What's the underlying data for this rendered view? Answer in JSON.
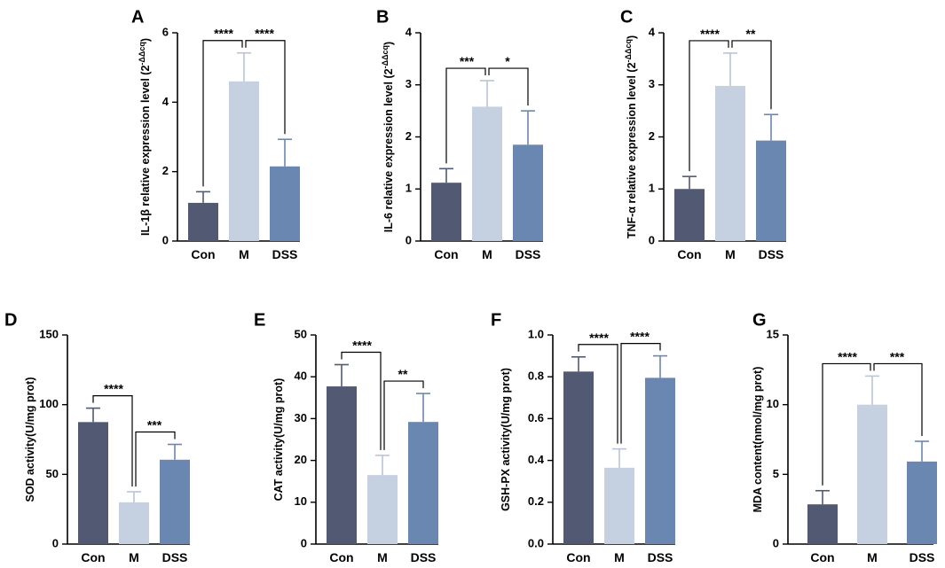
{
  "colors": {
    "Con": "#525a73",
    "M": "#c5d0e1",
    "DSS": "#6a87b2"
  },
  "chart_data": [
    {
      "type": "bar",
      "panel": "A",
      "ylabel": "IL-1β relative expression level (2",
      "ylabel_sup": "-ΔΔcq",
      "ylabel_end": ")",
      "categories": [
        "Con",
        "M",
        "DSS"
      ],
      "values": [
        1.1,
        4.6,
        2.15
      ],
      "errors": [
        0.32,
        0.82,
        0.78
      ],
      "ylim": [
        0,
        6
      ],
      "yticks": [
        "0",
        "2",
        "4",
        "6"
      ],
      "comparisons": [
        {
          "from": 0,
          "to": 1,
          "label": "****"
        },
        {
          "from": 1,
          "to": 2,
          "label": "****"
        }
      ]
    },
    {
      "type": "bar",
      "panel": "B",
      "ylabel": "IL-6 relative expression level (2",
      "ylabel_sup": "-ΔΔcq",
      "ylabel_end": ")",
      "categories": [
        "Con",
        "M",
        "DSS"
      ],
      "values": [
        1.12,
        2.58,
        1.85
      ],
      "errors": [
        0.27,
        0.5,
        0.65
      ],
      "ylim": [
        0,
        4
      ],
      "yticks": [
        "0",
        "1",
        "2",
        "3",
        "4"
      ],
      "comparisons": [
        {
          "from": 0,
          "to": 1,
          "label": "***"
        },
        {
          "from": 1,
          "to": 2,
          "label": "*"
        }
      ]
    },
    {
      "type": "bar",
      "panel": "C",
      "ylabel": "TNF-α relative expression level (2",
      "ylabel_sup": "-ΔΔcq",
      "ylabel_end": ")",
      "categories": [
        "Con",
        "M",
        "DSS"
      ],
      "values": [
        1.0,
        2.98,
        1.93
      ],
      "errors": [
        0.24,
        0.63,
        0.5
      ],
      "ylim": [
        0,
        4
      ],
      "yticks": [
        "0",
        "1",
        "2",
        "3",
        "4"
      ],
      "comparisons": [
        {
          "from": 0,
          "to": 1,
          "label": "****"
        },
        {
          "from": 1,
          "to": 2,
          "label": "**"
        }
      ]
    },
    {
      "type": "bar",
      "panel": "D",
      "ylabel": "SOD activity(U/mg prot)",
      "categories": [
        "Con",
        "M",
        "DSS"
      ],
      "values": [
        87.5,
        30,
        60.5
      ],
      "errors": [
        10,
        7.5,
        11
      ],
      "ylim": [
        0,
        150
      ],
      "yticks": [
        "0",
        "50",
        "100",
        "150"
      ],
      "comparisons": [
        {
          "from": 0,
          "to": 1,
          "label": "****"
        },
        {
          "from": 1,
          "to": 2,
          "label": "***"
        }
      ]
    },
    {
      "type": "bar",
      "panel": "E",
      "ylabel": "CAT activity(U/mg prot)",
      "categories": [
        "Con",
        "M",
        "DSS"
      ],
      "values": [
        37.7,
        16.5,
        29.2
      ],
      "errors": [
        5.2,
        4.7,
        6.8
      ],
      "ylim": [
        0,
        50
      ],
      "yticks": [
        "0",
        "10",
        "20",
        "30",
        "40",
        "50"
      ],
      "comparisons": [
        {
          "from": 0,
          "to": 1,
          "label": "****"
        },
        {
          "from": 1,
          "to": 2,
          "label": "**"
        }
      ]
    },
    {
      "type": "bar",
      "panel": "F",
      "ylabel": "GSH-PX activity(U/mg prot)",
      "categories": [
        "Con",
        "M",
        "DSS"
      ],
      "values": [
        0.825,
        0.365,
        0.795
      ],
      "errors": [
        0.07,
        0.09,
        0.105
      ],
      "ylim": [
        0,
        1.0
      ],
      "yticks": [
        "0.0",
        "0.2",
        "0.4",
        "0.6",
        "0.8",
        "1.0"
      ],
      "comparisons": [
        {
          "from": 0,
          "to": 1,
          "label": "****"
        },
        {
          "from": 1,
          "to": 2,
          "label": "****"
        }
      ]
    },
    {
      "type": "bar",
      "panel": "G",
      "ylabel": "MDA content(nmol/mg prot)",
      "categories": [
        "Con",
        "M",
        "DSS"
      ],
      "values": [
        2.85,
        10.0,
        5.92
      ],
      "errors": [
        0.98,
        2.05,
        1.45
      ],
      "ylim": [
        0,
        15
      ],
      "yticks": [
        "0",
        "5",
        "10",
        "15"
      ],
      "comparisons": [
        {
          "from": 0,
          "to": 1,
          "label": "****"
        },
        {
          "from": 1,
          "to": 2,
          "label": "***"
        }
      ]
    }
  ]
}
